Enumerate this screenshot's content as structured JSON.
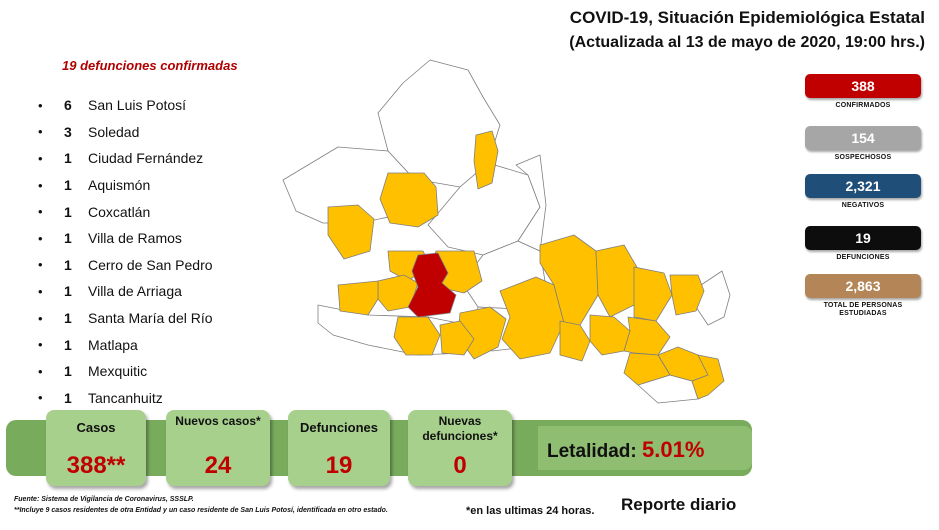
{
  "header": {
    "title": "COVID-19, Situación Epidemiológica Estatal",
    "updated": "(Actualizada al 13 de mayo de 2020, 19:00 hrs.)"
  },
  "deaths_list": {
    "heading": "19 defunciones  confirmadas",
    "bullet": "•",
    "items": [
      {
        "count": "6",
        "place": "San Luis Potosí"
      },
      {
        "count": "3",
        "place": "Soledad"
      },
      {
        "count": "1",
        "place": "Ciudad Fernández"
      },
      {
        "count": "1",
        "place": "Aquismón"
      },
      {
        "count": "1",
        "place": "Coxcatlán"
      },
      {
        "count": "1",
        "place": "Villa de Ramos"
      },
      {
        "count": "1",
        "place": "Cerro de San Pedro"
      },
      {
        "count": "1",
        "place": "Villa de Arriaga"
      },
      {
        "count": "1",
        "place": "Santa María del Río"
      },
      {
        "count": "1",
        "place": "Matlapa"
      },
      {
        "count": "1",
        "place": "Mexquitic"
      },
      {
        "count": "1",
        "place": "Tancanhuitz"
      }
    ]
  },
  "stats": [
    {
      "value": "388",
      "label": "CONFIRMADOS",
      "color": "#c00000"
    },
    {
      "value": "154",
      "label": "SOSPECHOSOS",
      "color": "#a6a6a6"
    },
    {
      "value": "2,321",
      "label": "NEGATIVOS",
      "color": "#1f4e79"
    },
    {
      "value": "19",
      "label": "DEFUNCIONES",
      "color": "#0d0d0d"
    },
    {
      "value": "2,863",
      "label": "TOTAL DE PERSONAS ESTUDIADAS",
      "color": "#b48557"
    }
  ],
  "summary": {
    "casos": {
      "label": "Casos",
      "value": "388**"
    },
    "nuevos_casos": {
      "label": "Nuevos casos*",
      "value": "24"
    },
    "defunciones": {
      "label": "Defunciones",
      "value": "19"
    },
    "nuevas_defunciones": {
      "label": "Nuevas defunciones*",
      "value": "0"
    },
    "letalidad": {
      "label": "Letalidad:",
      "value": "5.01%"
    }
  },
  "map_colors": {
    "no_cases": "#ffffff",
    "with_cases": "#ffc000",
    "with_deaths": "#c00000",
    "border": "#7f7f7f"
  },
  "footer": {
    "source": "Fuente:  Sistema de Vigilancia de Coronavirus, SSSLP.",
    "note": "**Incluye 9 casos residentes de otra Entidad y un caso residente de San Luis Potosí,  identificada en otro estado.",
    "note2": "*en las ultimas 24 horas.",
    "report": "Reporte diario"
  }
}
